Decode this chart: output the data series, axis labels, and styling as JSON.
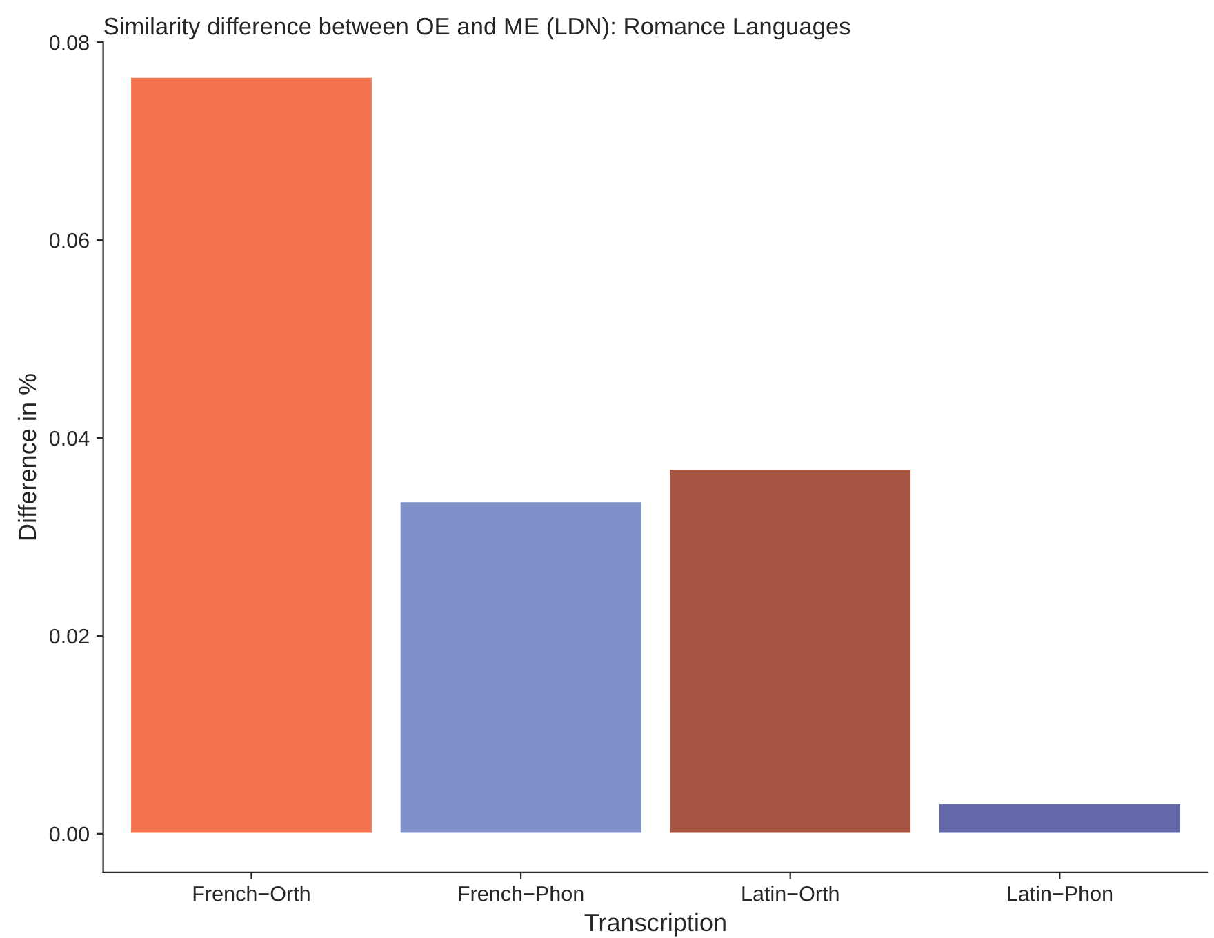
{
  "chart_data": {
    "type": "bar",
    "title": "Similarity difference between OE and ME (LDN): Romance Languages",
    "xlabel": "Transcription",
    "ylabel": "Difference in %",
    "categories": [
      "French−Orth",
      "French−Phon",
      "Latin−Orth",
      "Latin−Phon"
    ],
    "values": [
      0.0765,
      0.0336,
      0.0369,
      0.0031
    ],
    "colors": [
      "#f3734f",
      "#8090c8",
      "#a55542",
      "#6468a8"
    ],
    "ylim": [
      -0.0039,
      0.08
    ],
    "yticks": [
      {
        "value": 0,
        "label": "0.00"
      },
      {
        "value": 0.02,
        "label": "0.02"
      },
      {
        "value": 0.04,
        "label": "0.04"
      },
      {
        "value": 0.06,
        "label": "0.06"
      },
      {
        "value": 0.08,
        "label": "0.08"
      }
    ],
    "grid": false,
    "legend": false
  }
}
